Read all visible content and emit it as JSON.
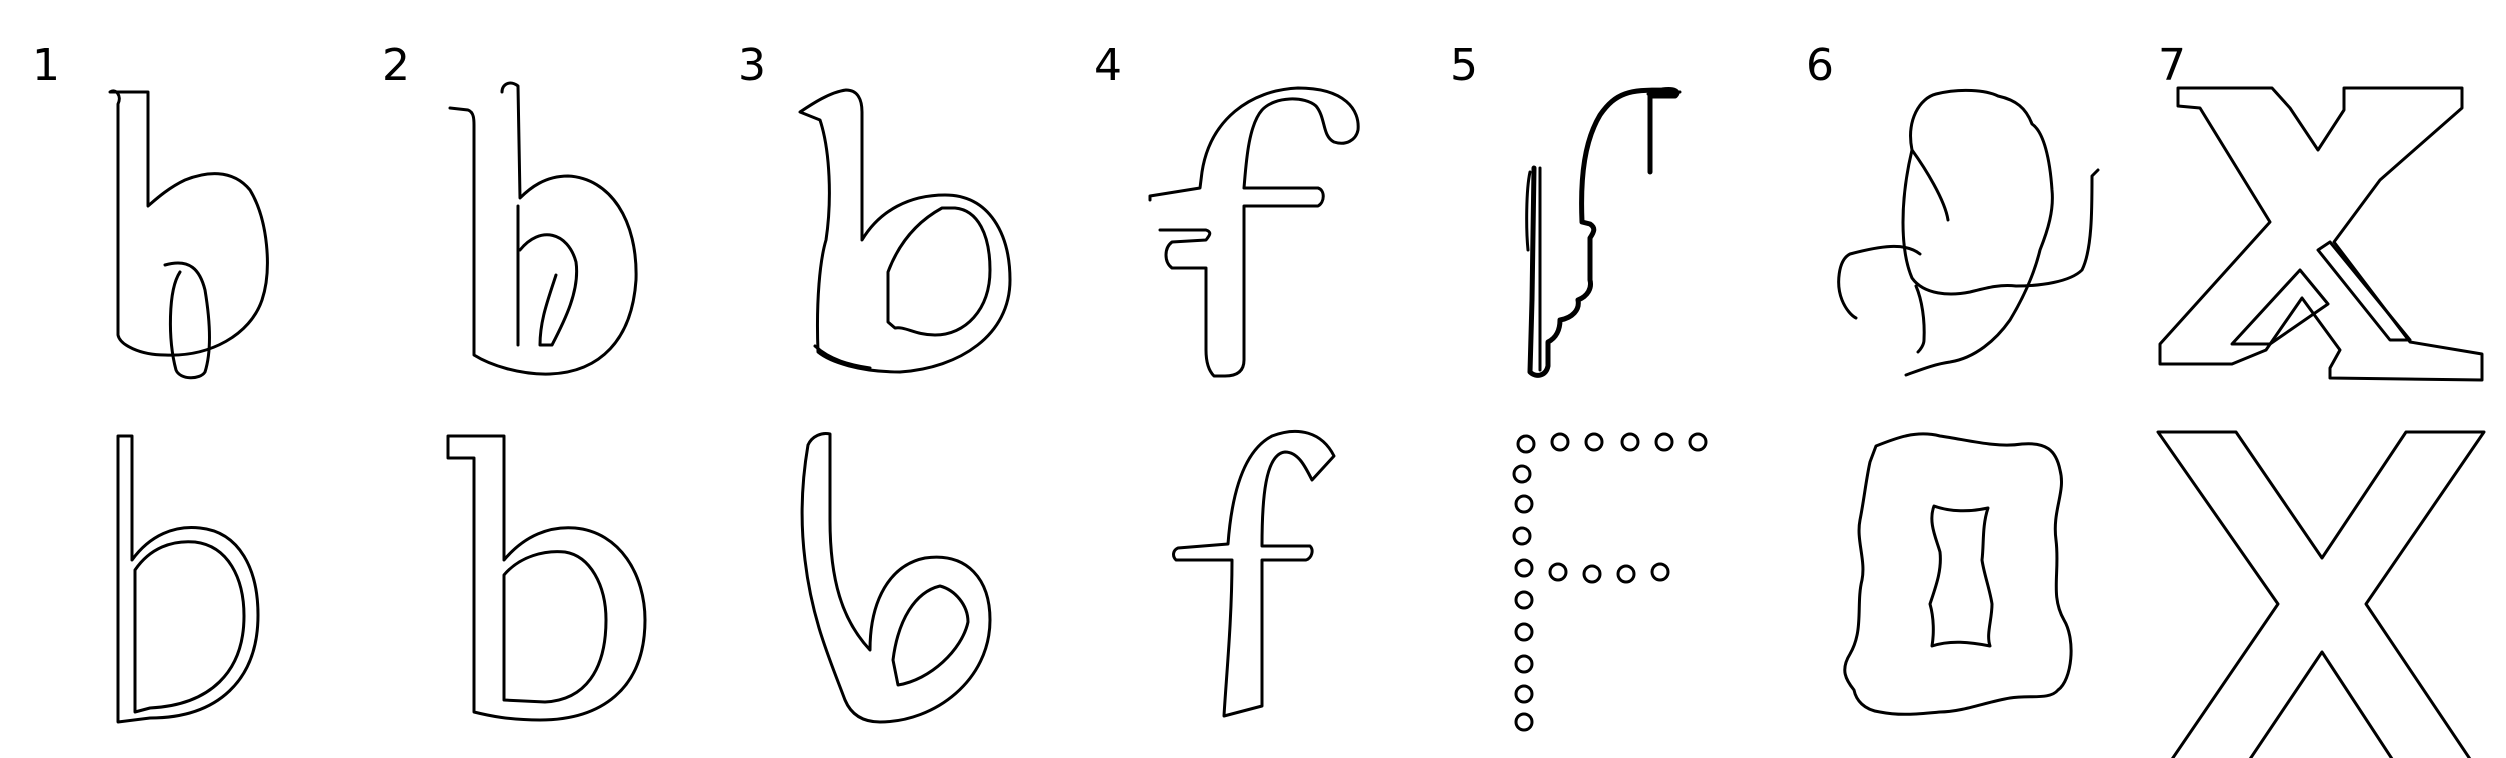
{
  "panels": [
    {
      "number": "1",
      "top_glyph": "b-sketch-icon",
      "bottom_glyph": "b-outline-icon"
    },
    {
      "number": "2",
      "top_glyph": "b-sketch-icon",
      "bottom_glyph": "b-serif-outline-icon"
    },
    {
      "number": "3",
      "top_glyph": "b-sketch-icon",
      "bottom_glyph": "b-curved-outline-icon"
    },
    {
      "number": "4",
      "top_glyph": "f-sketch-icon",
      "bottom_glyph": "f-outline-icon"
    },
    {
      "number": "5",
      "top_glyph": "f-sketch-icon",
      "bottom_glyph": "f-dotted-icon"
    },
    {
      "number": "6",
      "top_glyph": "o-sketch-icon",
      "bottom_glyph": "o-rough-outline-icon"
    },
    {
      "number": "7",
      "top_glyph": "x-serif-outline-icon",
      "bottom_glyph": "x-outline-icon"
    }
  ],
  "colors": {
    "stroke": "#000000",
    "background": "#ffffff"
  }
}
